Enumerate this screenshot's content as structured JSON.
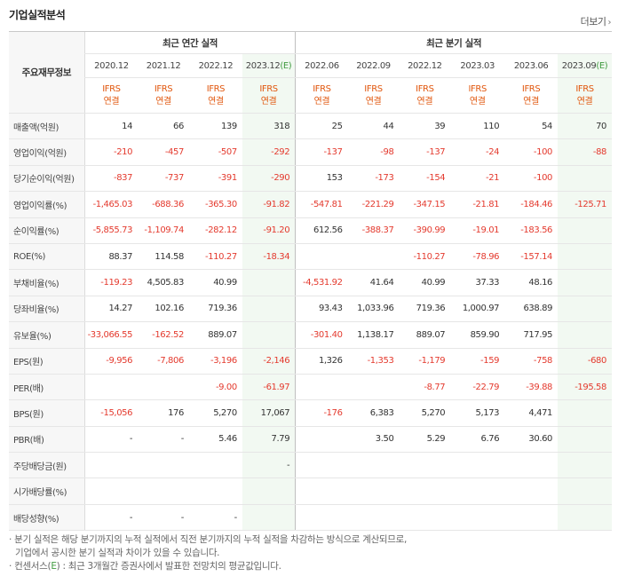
{
  "header": {
    "title": "기업실적분석",
    "more_label": "더보기",
    "more_arrow": "›"
  },
  "table": {
    "row_header_label": "주요재무정보",
    "group_annual": "최근 연간 실적",
    "group_quarterly": "최근 분기 실적",
    "periods": [
      "2020.12",
      "2021.12",
      "2022.12",
      "2023.12(E)",
      "2022.06",
      "2022.09",
      "2022.12",
      "2023.03",
      "2023.06",
      "2023.09(E)"
    ],
    "basis_top": "IFRS",
    "basis_bottom": "연결",
    "rows": [
      {
        "label": "매출액(억원)",
        "values": [
          "14",
          "66",
          "139",
          "318",
          "25",
          "44",
          "39",
          "110",
          "54",
          "70"
        ]
      },
      {
        "label": "영업이익(억원)",
        "values": [
          "-210",
          "-457",
          "-507",
          "-292",
          "-137",
          "-98",
          "-137",
          "-24",
          "-100",
          "-88"
        ]
      },
      {
        "label": "당기순이익(억원)",
        "values": [
          "-837",
          "-737",
          "-391",
          "-290",
          "153",
          "-173",
          "-154",
          "-21",
          "-100",
          ""
        ]
      },
      {
        "label": "영업이익률(%)",
        "values": [
          "-1,465.03",
          "-688.36",
          "-365.30",
          "-91.82",
          "-547.81",
          "-221.29",
          "-347.15",
          "-21.81",
          "-184.46",
          "-125.71"
        ]
      },
      {
        "label": "순이익률(%)",
        "values": [
          "-5,855.73",
          "-1,109.74",
          "-282.12",
          "-91.20",
          "612.56",
          "-388.37",
          "-390.99",
          "-19.01",
          "-183.56",
          ""
        ]
      },
      {
        "label": "ROE(%)",
        "values": [
          "88.37",
          "114.58",
          "-110.27",
          "-18.34",
          "",
          "",
          "-110.27",
          "-78.96",
          "-157.14",
          ""
        ]
      },
      {
        "label": "부채비율(%)",
        "values": [
          "-119.23",
          "4,505.83",
          "40.99",
          "",
          "-4,531.92",
          "41.64",
          "40.99",
          "37.33",
          "48.16",
          ""
        ]
      },
      {
        "label": "당좌비율(%)",
        "values": [
          "14.27",
          "102.16",
          "719.36",
          "",
          "93.43",
          "1,033.96",
          "719.36",
          "1,000.97",
          "638.89",
          ""
        ]
      },
      {
        "label": "유보율(%)",
        "values": [
          "-33,066.55",
          "-162.52",
          "889.07",
          "",
          "-301.40",
          "1,138.17",
          "889.07",
          "859.90",
          "717.95",
          ""
        ]
      },
      {
        "label": "EPS(원)",
        "values": [
          "-9,956",
          "-7,806",
          "-3,196",
          "-2,146",
          "1,326",
          "-1,353",
          "-1,179",
          "-159",
          "-758",
          "-680"
        ]
      },
      {
        "label": "PER(배)",
        "values": [
          "",
          "",
          "-9.00",
          "-61.97",
          "",
          "",
          "-8.77",
          "-22.79",
          "-39.88",
          "-195.58"
        ]
      },
      {
        "label": "BPS(원)",
        "values": [
          "-15,056",
          "176",
          "5,270",
          "17,067",
          "-176",
          "6,383",
          "5,270",
          "5,173",
          "4,471",
          ""
        ]
      },
      {
        "label": "PBR(배)",
        "values": [
          "-",
          "-",
          "5.46",
          "7.79",
          "",
          "3.50",
          "5.29",
          "6.76",
          "30.60",
          ""
        ]
      },
      {
        "label": "주당배당금(원)",
        "values": [
          "",
          "",
          "",
          "-",
          "",
          "",
          "",
          "",
          "",
          ""
        ]
      },
      {
        "label": "시가배당률(%)",
        "values": [
          "",
          "",
          "",
          "",
          "",
          "",
          "",
          "",
          "",
          ""
        ]
      },
      {
        "label": "배당성향(%)",
        "values": [
          "-",
          "-",
          "-",
          "",
          "",
          "",
          "",
          "",
          "",
          ""
        ]
      }
    ]
  },
  "notes": {
    "line1": "분기 실적은 해당 분기까지의 누적 실적에서 직전 분기까지의 누적 실적을 차감하는 방식으로 계산되므로,",
    "line2": "기업에서 공시한 분기 실적과 차이가 있을 수 있습니다.",
    "line3_prefix": "컨센서스(",
    "line3_e": "E",
    "line3_suffix": ") : 최근 3개월간 증권사에서 발표한 전망치의 평균값입니다."
  },
  "colors": {
    "negative": "#e43a2e",
    "basis": "#e1570e",
    "estimate_bg": "#f2f9f2",
    "estimate_text": "#3f9a3f"
  }
}
